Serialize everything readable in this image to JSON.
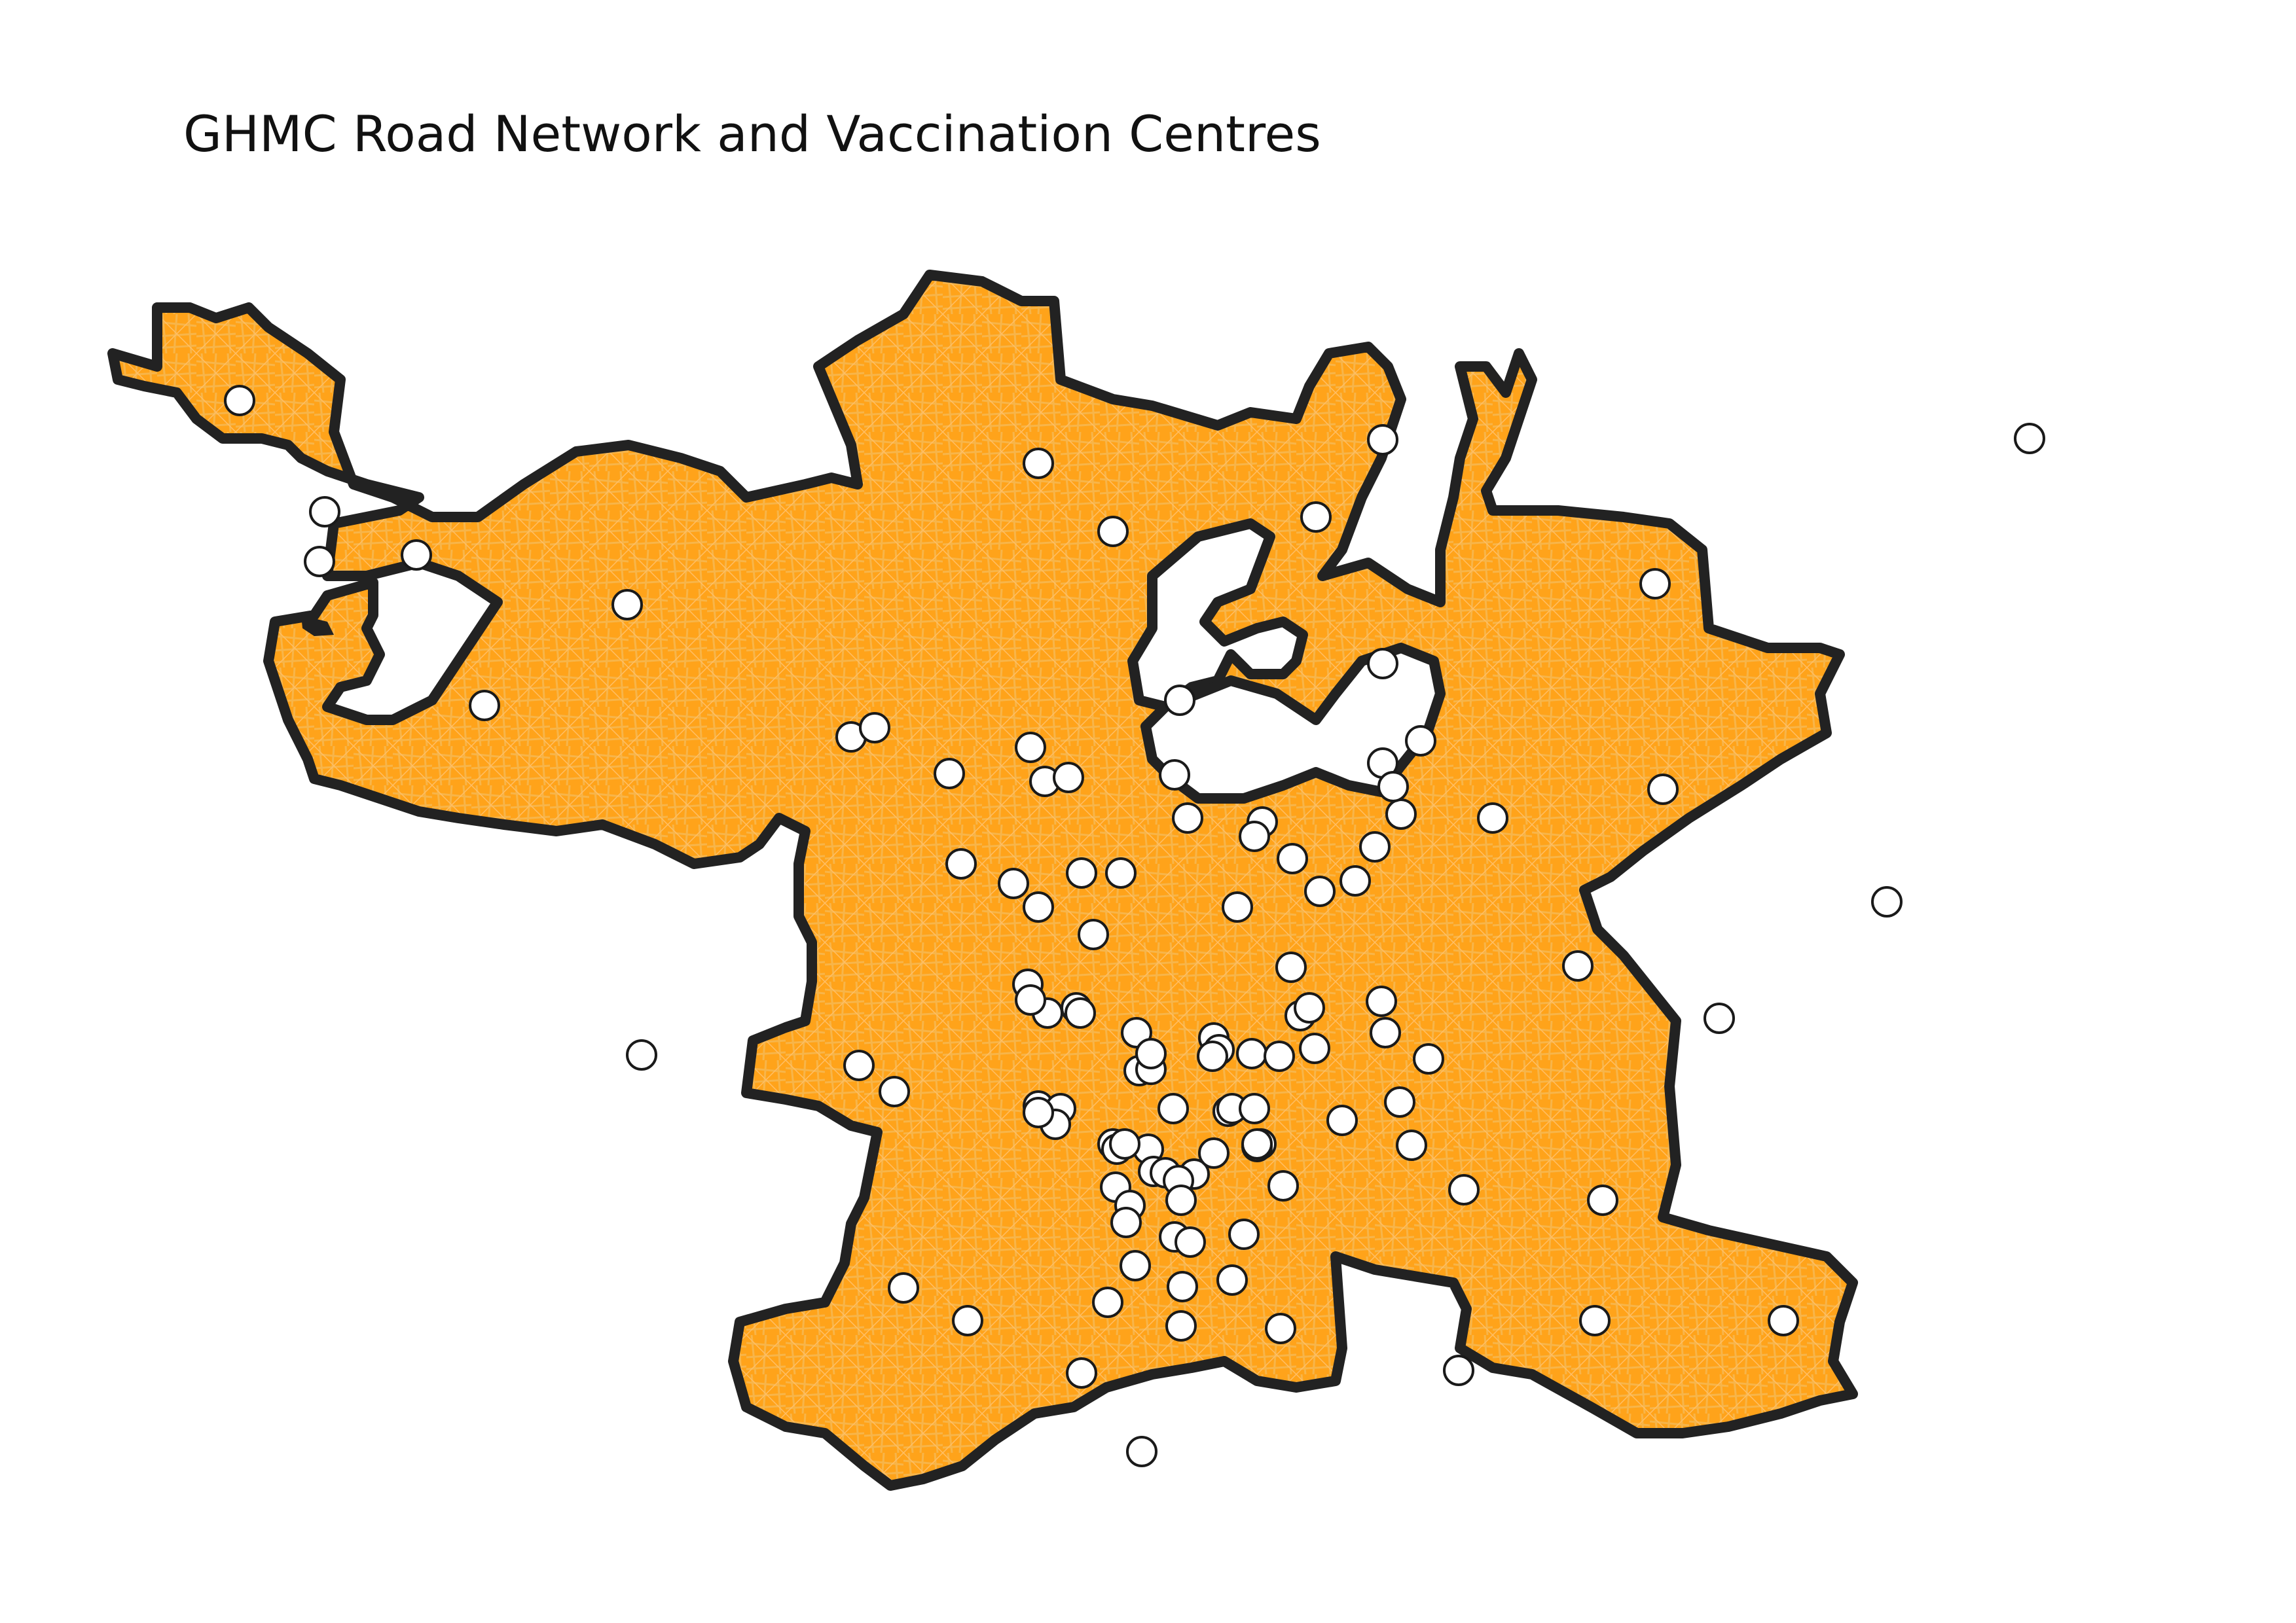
{
  "title": "GHMC Road Network and Vaccination Centres",
  "colors": {
    "background": "#ffffff",
    "road_network": "#ffa31a",
    "road_lines": "#f08c00",
    "boundary": "#222222",
    "centre_fill": "#ffffff",
    "centre_stroke": "#1a1a1a"
  },
  "layers": {
    "boundary": "ghmc-boundary",
    "roads": "road-network",
    "points": "vaccination-centres"
  },
  "vaccination_centre_count": 118
}
